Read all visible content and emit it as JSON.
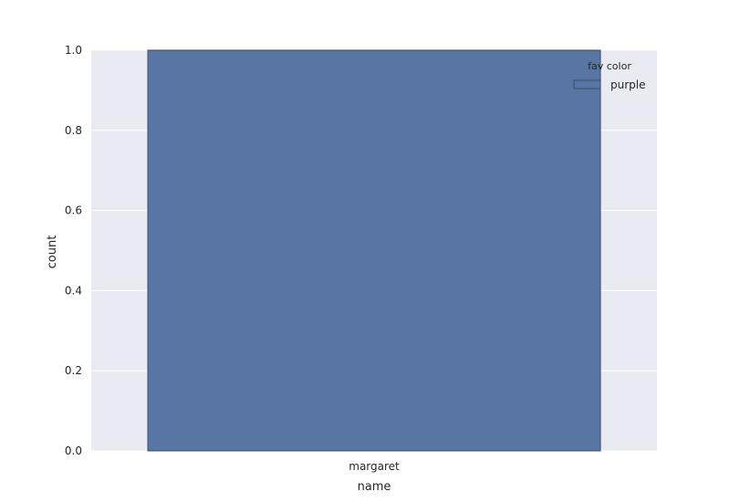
{
  "chart_data": {
    "type": "bar",
    "categories": [
      "margaret"
    ],
    "series": [
      {
        "name": "purple",
        "values": [
          1.0
        ]
      }
    ],
    "xlabel": "name",
    "ylabel": "count",
    "ylim": [
      0.0,
      1.0
    ],
    "yticks": [
      "0.0",
      "0.2",
      "0.4",
      "0.6",
      "0.8",
      "1.0"
    ],
    "grid": true,
    "legend": {
      "title": "fav color",
      "placement": "top-right"
    },
    "colors": {
      "bar": "#5975a4",
      "bar_edge": "#3c4d6a",
      "plot_background": "#eaeaf2",
      "grid": "#ffffff",
      "text": "#262626"
    }
  }
}
